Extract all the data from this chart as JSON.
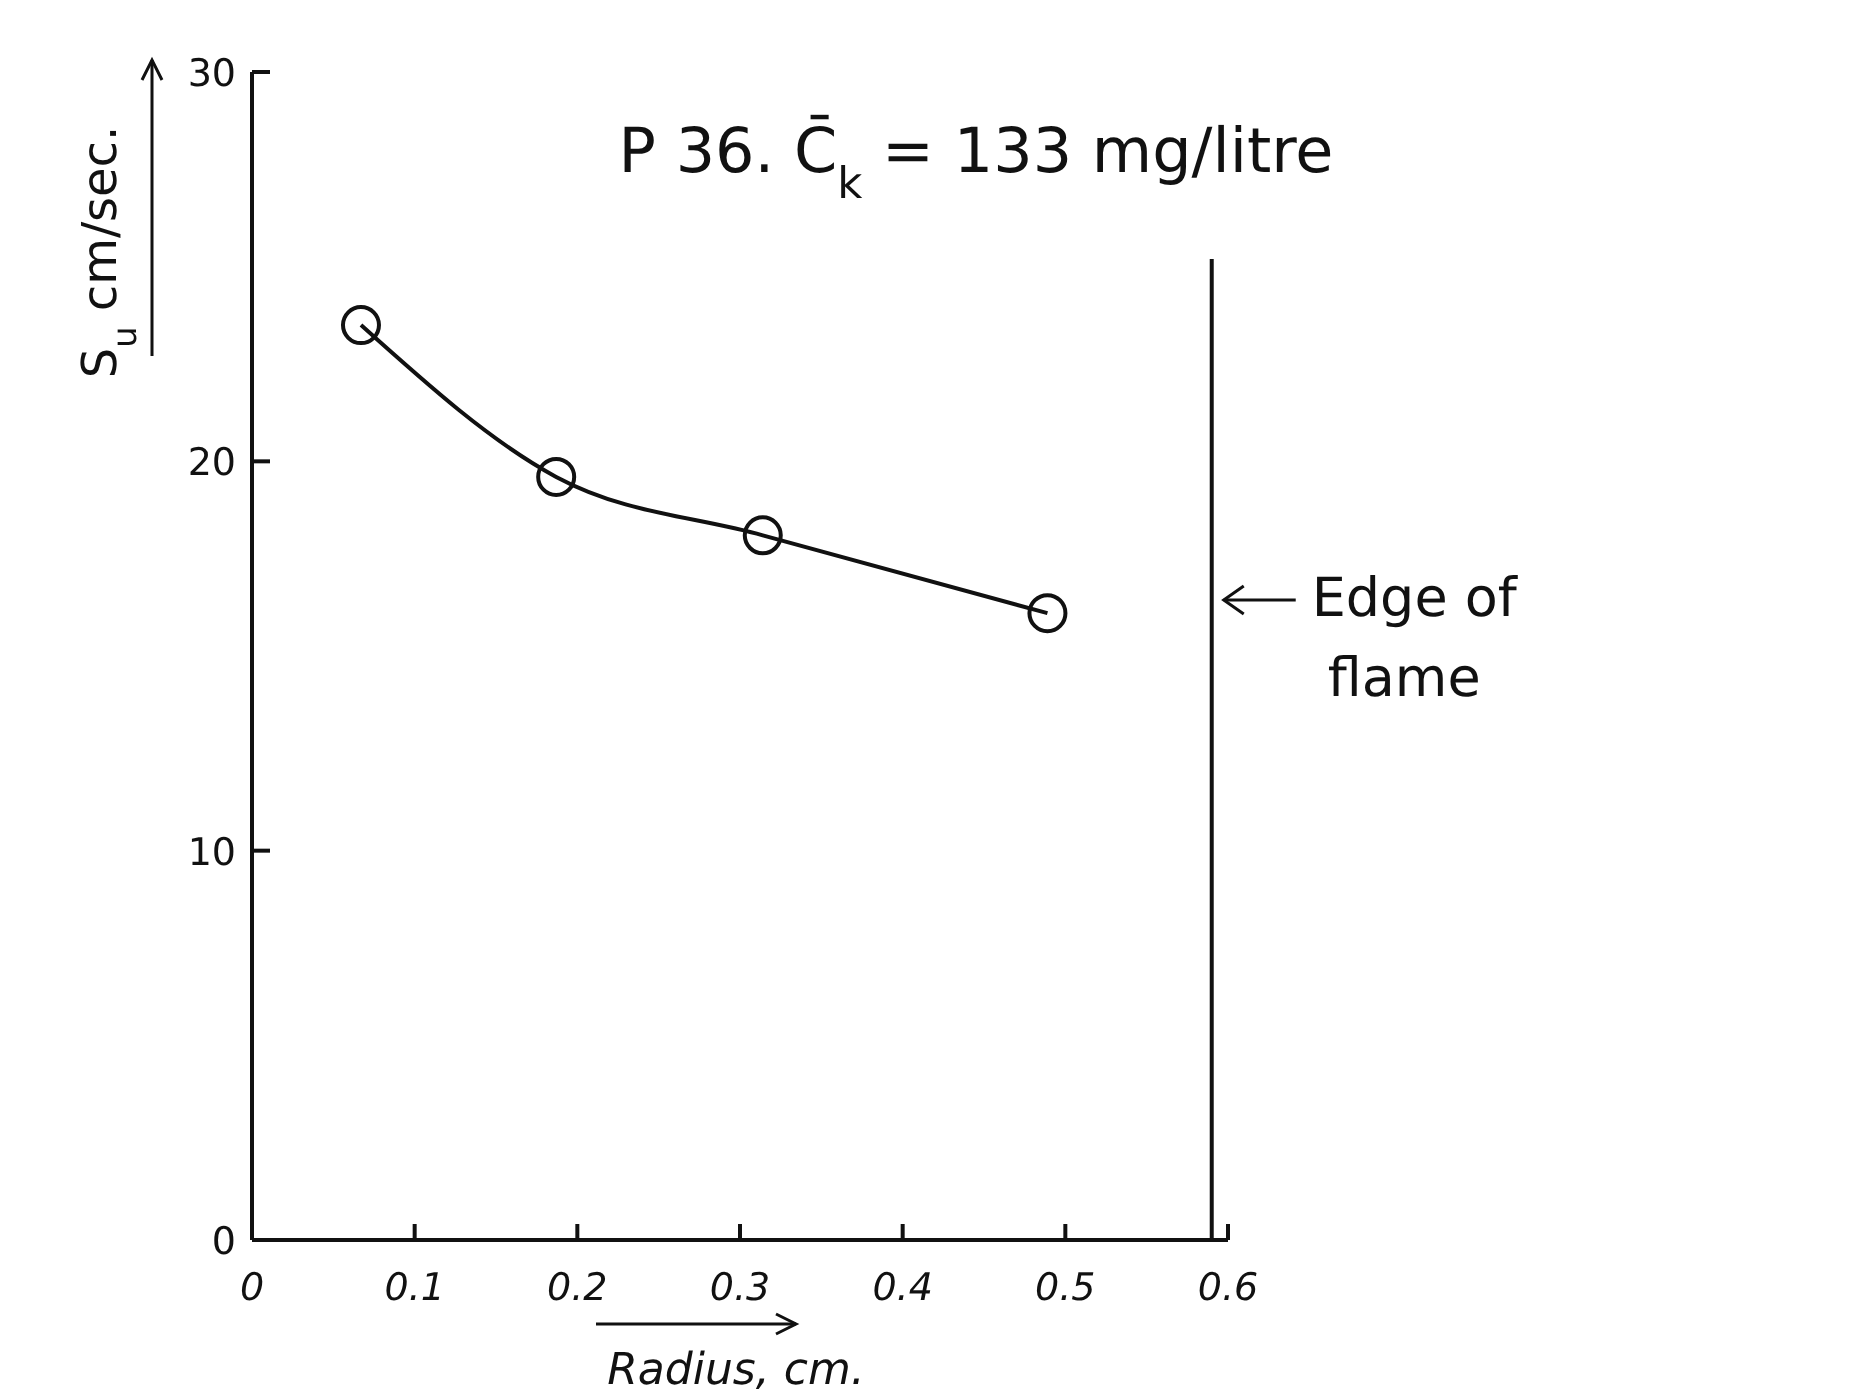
{
  "chart_data": {
    "type": "line",
    "title": "P 36. C̄$_{k}$ = 133 mg/litre",
    "xlabel": "Radius, cm.",
    "ylabel": "S$_{u}$ cm/sec.",
    "x": [
      0.067,
      0.187,
      0.314,
      0.489
    ],
    "series": [
      {
        "color": "#111111",
        "values": [
          23.5,
          19.6,
          18.1,
          16.1
        ]
      }
    ],
    "xlim": [
      0,
      0.6
    ],
    "ylim": [
      0,
      30
    ],
    "xticks": [
      0,
      0.1,
      0.2,
      0.3,
      0.4,
      0.5,
      0.6
    ],
    "yticks": [
      0,
      10,
      20,
      30
    ],
    "ref_lines": [
      {
        "axis": "x",
        "value": 0.59,
        "label": "Edge of flame",
        "color": "#111111"
      }
    ],
    "marker": "circle",
    "grid": false
  }
}
